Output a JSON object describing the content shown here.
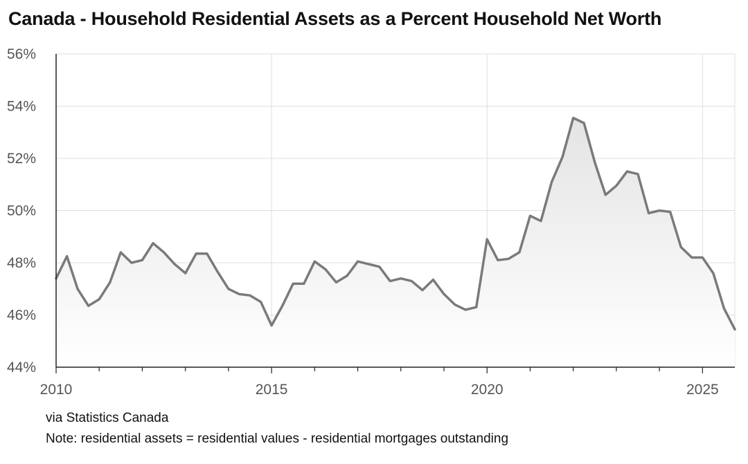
{
  "chart_data": {
    "type": "area",
    "title": "Canada - Household Residential Assets as a Percent Household Net Worth",
    "xlabel": "",
    "ylabel": "",
    "x_ticks": [
      "2010",
      "2015",
      "2020",
      "2025"
    ],
    "y_ticks": [
      "44%",
      "46%",
      "48%",
      "50%",
      "52%",
      "54%",
      "56%"
    ],
    "ylim": [
      44,
      56
    ],
    "xlim": [
      2010.0,
      2025.75
    ],
    "grid": true,
    "legend": "none",
    "colors": {
      "line": "#7a7a7a",
      "fill_top": "#e4e4e4",
      "fill_bottom": "#ffffff",
      "grid": "#dddddd"
    },
    "series": [
      {
        "x": [
          2010.0,
          2010.25,
          2010.5,
          2010.75,
          2011.0,
          2011.25,
          2011.5,
          2011.75,
          2012.0,
          2012.25,
          2012.5,
          2012.75,
          2013.0,
          2013.25,
          2013.5,
          2013.75,
          2014.0,
          2014.25,
          2014.5,
          2014.75,
          2015.0,
          2015.25,
          2015.5,
          2015.75,
          2016.0,
          2016.25,
          2016.5,
          2016.75,
          2017.0,
          2017.25,
          2017.5,
          2017.75,
          2018.0,
          2018.25,
          2018.5,
          2018.75,
          2019.0,
          2019.25,
          2019.5,
          2019.75,
          2020.0,
          2020.25,
          2020.5,
          2020.75,
          2021.0,
          2021.25,
          2021.5,
          2021.75,
          2022.0,
          2022.25,
          2022.5,
          2022.75,
          2023.0,
          2023.25,
          2023.5,
          2023.75,
          2024.0,
          2024.25,
          2024.5,
          2024.75,
          2025.0,
          2025.25,
          2025.5,
          2025.75
        ],
        "values": [
          47.4,
          48.25,
          47.0,
          46.35,
          46.6,
          47.25,
          48.4,
          48.0,
          48.1,
          48.75,
          48.4,
          47.95,
          47.6,
          48.35,
          48.35,
          47.65,
          47.0,
          46.8,
          46.75,
          46.5,
          45.6,
          46.35,
          47.2,
          47.2,
          48.05,
          47.75,
          47.25,
          47.5,
          48.05,
          47.95,
          47.85,
          47.3,
          47.4,
          47.3,
          46.95,
          47.35,
          46.8,
          46.4,
          46.2,
          46.3,
          48.9,
          48.1,
          48.15,
          48.4,
          49.8,
          49.6,
          51.1,
          52.05,
          53.55,
          53.35,
          51.85,
          50.6,
          50.95,
          51.5,
          51.4,
          49.9,
          50.0,
          49.95,
          48.6,
          48.2,
          48.2,
          47.6,
          46.25,
          45.45
        ]
      }
    ]
  },
  "footer": {
    "source": "via Statistics Canada",
    "note": "Note: residential assets = residential values - residential mortgages outstanding"
  }
}
